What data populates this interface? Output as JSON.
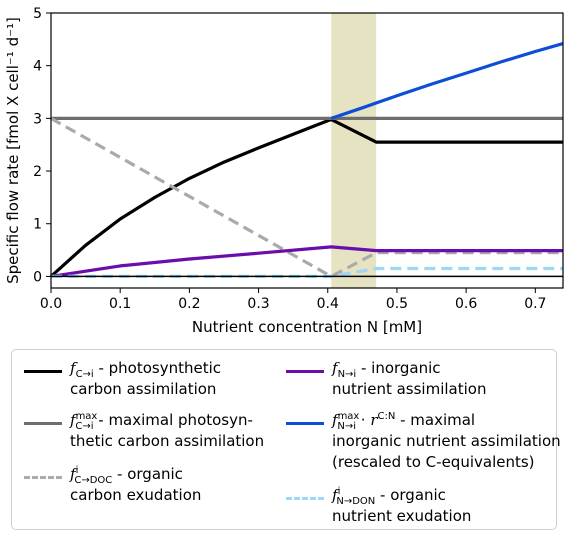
{
  "chart_data": {
    "type": "line",
    "xlabel": "Nutrient concentration N [mM]",
    "ylabel": "Specific flow rate [fmol X cell⁻¹ d⁻¹]",
    "xlim": [
      0.0,
      0.74
    ],
    "ylim": [
      -0.22,
      5.0
    ],
    "xticks": [
      "0.0",
      "0.1",
      "0.2",
      "0.3",
      "0.4",
      "0.5",
      "0.6",
      "0.7"
    ],
    "yticks": [
      "0",
      "1",
      "2",
      "3",
      "4",
      "5"
    ],
    "grid": false,
    "legend_position": "below",
    "shaded_region": {
      "x_start": 0.405,
      "x_end": 0.47,
      "color": "#e6e3c3"
    },
    "series": [
      {
        "id": "photo",
        "color": "#000000",
        "dash": "solid",
        "x": [
          0,
          0.05,
          0.1,
          0.15,
          0.2,
          0.25,
          0.3,
          0.35,
          0.405,
          0.47,
          0.55,
          0.65,
          0.74
        ],
        "y": [
          0,
          0.59,
          1.09,
          1.5,
          1.86,
          2.17,
          2.44,
          2.7,
          2.98,
          2.55,
          2.55,
          2.55,
          2.55
        ]
      },
      {
        "id": "photo_max",
        "color": "#6e6e6e",
        "dash": "solid",
        "x": [
          0,
          0.74
        ],
        "y": [
          3.0,
          3.0
        ]
      },
      {
        "id": "doc",
        "color": "#aaaaaa",
        "dash": "dashed",
        "x": [
          0,
          0.405,
          0.47,
          0.74
        ],
        "y": [
          3.0,
          0.0,
          0.45,
          0.45
        ]
      },
      {
        "id": "inorg",
        "color": "#6a0dad",
        "dash": "solid",
        "x": [
          0,
          0.1,
          0.2,
          0.3,
          0.405,
          0.47,
          0.74
        ],
        "y": [
          0,
          0.2,
          0.33,
          0.44,
          0.56,
          0.49,
          0.49
        ]
      },
      {
        "id": "inorg_max",
        "color": "#0c4fd6",
        "dash": "solid",
        "x": [
          0.405,
          0.45,
          0.5,
          0.55,
          0.6,
          0.65,
          0.7,
          0.74
        ],
        "y": [
          3.0,
          3.2,
          3.43,
          3.65,
          3.86,
          4.07,
          4.27,
          4.42
        ]
      },
      {
        "id": "don",
        "color": "#9dd6f7",
        "dash": "dashed",
        "x": [
          0,
          0.405,
          0.47,
          0.74
        ],
        "y": [
          0.0,
          0.0,
          0.15,
          0.15
        ]
      },
      {
        "id": "zero",
        "color": "#000000",
        "dash": "solid",
        "x": [
          0,
          0.74
        ],
        "y": [
          0,
          0
        ]
      }
    ]
  },
  "legend": {
    "photo": {
      "sym": "f",
      "sub": "C→i",
      "text1": " - photosynthetic",
      "text2": "carbon assimilation"
    },
    "photo_max": {
      "sym": "f",
      "sup": "max",
      "sub": "C→i",
      "text1": " - maximal photosyn-",
      "text2": "thetic carbon assimilation"
    },
    "doc": {
      "sym": "f",
      "sup": "i",
      "sub": "C→DOC",
      "text1": " - organic",
      "text2": "carbon exudation"
    },
    "inorg": {
      "sym": "f",
      "sub": "N→i",
      "text1": " - inorganic",
      "text2": "nutrient assimilation"
    },
    "inorg_max": {
      "sym": "f",
      "sup": "max",
      "sub": "N→i",
      "mid": " · ",
      "sym2": "r",
      "sup2": "C:N",
      "text1": " - maximal",
      "text2": "inorganic nutrient assimilation",
      "text3": "(rescaled to C-equivalents)"
    },
    "don": {
      "sym": "f",
      "sup": "i",
      "sub": "N→DON",
      "text1": " - organic",
      "text2": "nutrient exudation"
    }
  }
}
